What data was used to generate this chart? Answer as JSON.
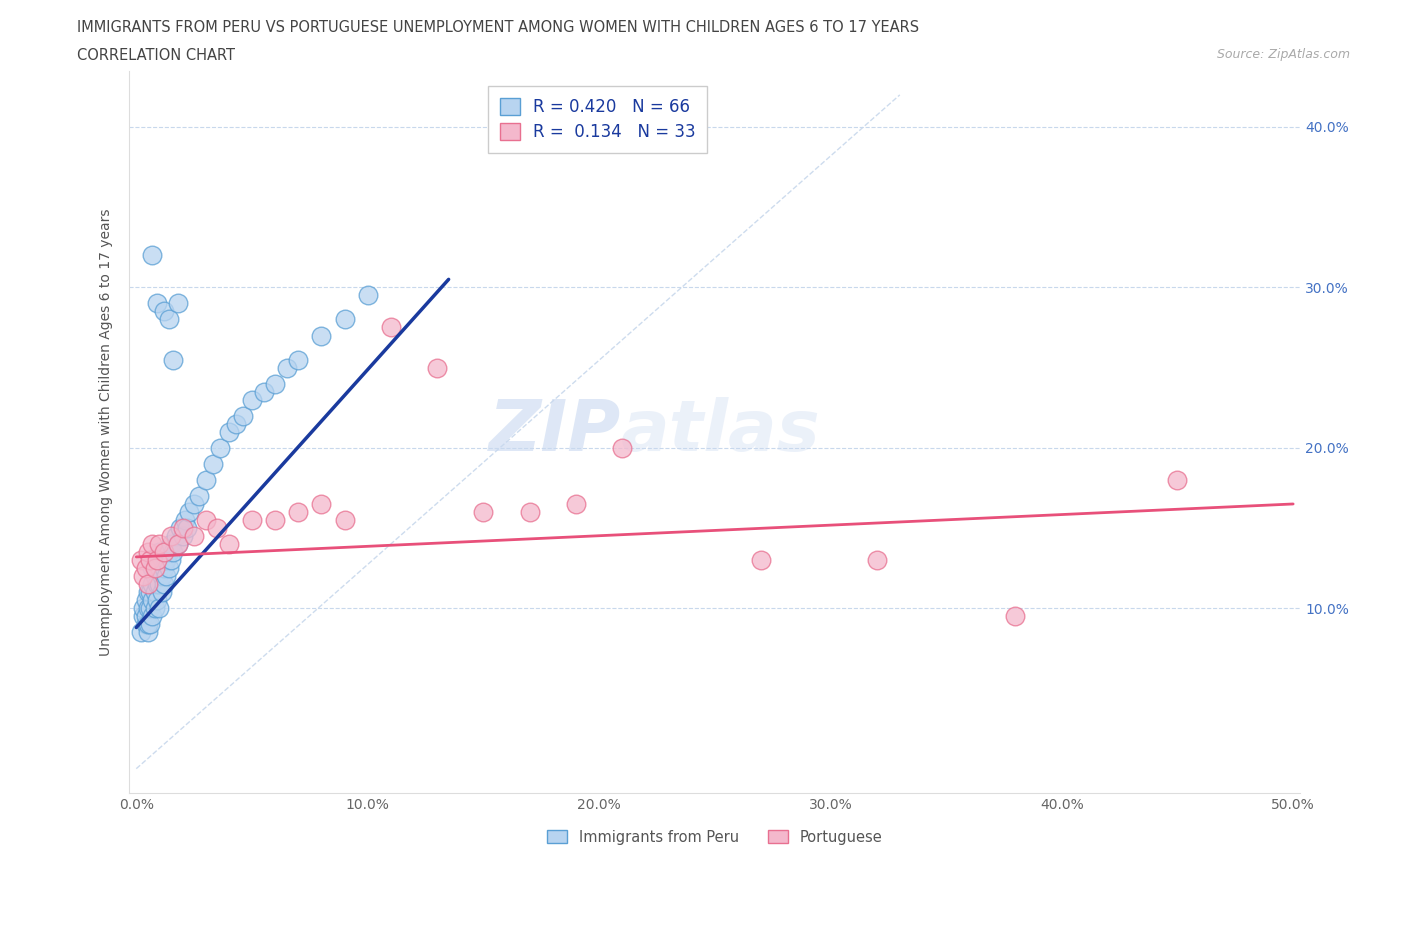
{
  "title1": "IMMIGRANTS FROM PERU VS PORTUGUESE UNEMPLOYMENT AMONG WOMEN WITH CHILDREN AGES 6 TO 17 YEARS",
  "title2": "CORRELATION CHART",
  "source": "Source: ZipAtlas.com",
  "ylabel": "Unemployment Among Women with Children Ages 6 to 17 years",
  "xlim": [
    -0.003,
    0.503
  ],
  "ylim": [
    -0.015,
    0.435
  ],
  "xticks": [
    0.0,
    0.1,
    0.2,
    0.3,
    0.4,
    0.5
  ],
  "xtick_labels": [
    "0.0%",
    "10.0%",
    "20.0%",
    "30.0%",
    "40.0%",
    "50.0%"
  ],
  "yticks_right": [
    0.1,
    0.2,
    0.3,
    0.4
  ],
  "ytick_labels_right": [
    "10.0%",
    "20.0%",
    "30.0%",
    "40.0%"
  ],
  "watermark_zip": "ZIP",
  "watermark_atlas": "atlas",
  "peru_face": "#b8d4f0",
  "peru_edge": "#5a9fd4",
  "port_face": "#f4b8cc",
  "port_edge": "#e87090",
  "blue_line": "#1a3a9e",
  "pink_line": "#e8507a",
  "dashed_line": "#c8d8ec",
  "R_peru": 0.42,
  "N_peru": 66,
  "R_port": 0.134,
  "N_port": 33,
  "legend_label_peru": "Immigrants from Peru",
  "legend_label_port": "Portuguese",
  "legend_text_color": "#1a3a9e",
  "title_color": "#444444",
  "ytick_color": "#4472c4",
  "xtick_color": "#666666",
  "grid_color": "#c8d8ec",
  "ylabel_color": "#555555",
  "peru_x": [
    0.002,
    0.003,
    0.003,
    0.004,
    0.004,
    0.004,
    0.005,
    0.005,
    0.005,
    0.005,
    0.006,
    0.006,
    0.006,
    0.007,
    0.007,
    0.007,
    0.007,
    0.008,
    0.008,
    0.008,
    0.009,
    0.009,
    0.01,
    0.01,
    0.01,
    0.01,
    0.011,
    0.011,
    0.012,
    0.012,
    0.013,
    0.013,
    0.014,
    0.014,
    0.015,
    0.015,
    0.016,
    0.017,
    0.018,
    0.019,
    0.02,
    0.021,
    0.022,
    0.023,
    0.025,
    0.027,
    0.03,
    0.033,
    0.036,
    0.04,
    0.043,
    0.046,
    0.05,
    0.055,
    0.06,
    0.065,
    0.07,
    0.08,
    0.09,
    0.1,
    0.007,
    0.009,
    0.012,
    0.014,
    0.016,
    0.018
  ],
  "peru_y": [
    0.085,
    0.095,
    0.1,
    0.09,
    0.095,
    0.105,
    0.085,
    0.09,
    0.1,
    0.11,
    0.09,
    0.1,
    0.11,
    0.095,
    0.105,
    0.115,
    0.125,
    0.1,
    0.11,
    0.12,
    0.105,
    0.115,
    0.1,
    0.115,
    0.125,
    0.135,
    0.11,
    0.12,
    0.115,
    0.125,
    0.12,
    0.13,
    0.125,
    0.135,
    0.13,
    0.14,
    0.135,
    0.145,
    0.14,
    0.15,
    0.145,
    0.155,
    0.15,
    0.16,
    0.165,
    0.17,
    0.18,
    0.19,
    0.2,
    0.21,
    0.215,
    0.22,
    0.23,
    0.235,
    0.24,
    0.25,
    0.255,
    0.27,
    0.28,
    0.295,
    0.32,
    0.29,
    0.285,
    0.28,
    0.255,
    0.29
  ],
  "port_x": [
    0.002,
    0.003,
    0.004,
    0.005,
    0.005,
    0.006,
    0.007,
    0.008,
    0.009,
    0.01,
    0.012,
    0.015,
    0.018,
    0.02,
    0.025,
    0.03,
    0.035,
    0.04,
    0.05,
    0.06,
    0.07,
    0.08,
    0.09,
    0.11,
    0.13,
    0.15,
    0.17,
    0.19,
    0.21,
    0.27,
    0.32,
    0.38,
    0.45
  ],
  "port_y": [
    0.13,
    0.12,
    0.125,
    0.115,
    0.135,
    0.13,
    0.14,
    0.125,
    0.13,
    0.14,
    0.135,
    0.145,
    0.14,
    0.15,
    0.145,
    0.155,
    0.15,
    0.14,
    0.155,
    0.155,
    0.16,
    0.165,
    0.155,
    0.275,
    0.25,
    0.16,
    0.16,
    0.165,
    0.2,
    0.13,
    0.13,
    0.095,
    0.18
  ]
}
